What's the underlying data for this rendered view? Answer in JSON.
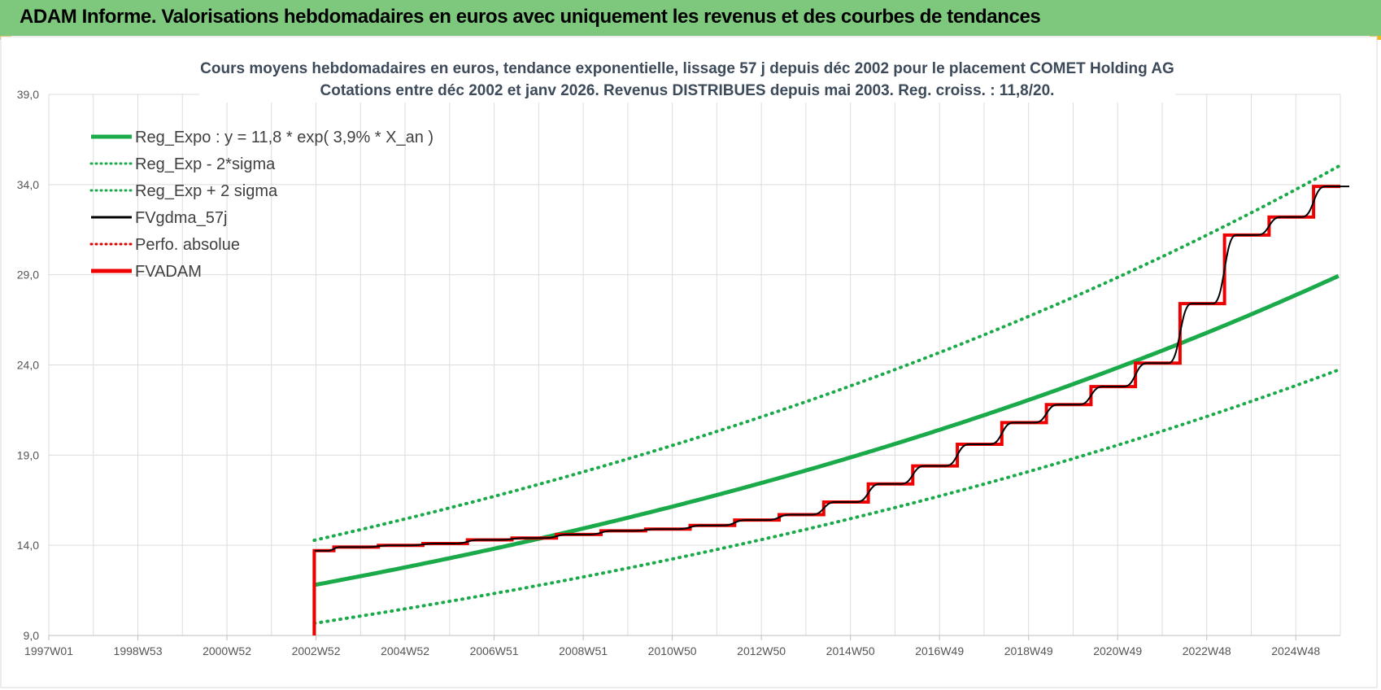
{
  "banner": {
    "title": "ADAM Informe. Valorisations hebdomadaires en euros avec uniquement les revenus et des courbes de tendances"
  },
  "chart_data": {
    "type": "line",
    "title_line1": "Cours moyens  hebdomadaires en euros, tendance exponentielle, lissage 57 j depuis déc 2002 pour le placement COMET Holding AG",
    "title_line2": "Cotations entre déc 2002 et janv 2026.  Revenus DISTRIBUES depuis mai 2003.  Reg. croiss. : 11,8/20.",
    "x_tick_labels": [
      "1997W01",
      "1998W53",
      "2000W52",
      "2002W52",
      "2004W52",
      "2006W51",
      "2008W51",
      "2010W50",
      "2012W50",
      "2014W50",
      "2016W49",
      "2018W49",
      "2020W49",
      "2022W48",
      "2024W48"
    ],
    "y_tick_labels": [
      "9,0",
      "14,0",
      "19,0",
      "24,0",
      "29,0",
      "34,0",
      "39,0"
    ],
    "ylim": [
      9,
      39
    ],
    "xlim": [
      1997.0,
      2026.0
    ],
    "grid": true,
    "legend_position": "top-left",
    "regression": {
      "a": 11.8,
      "rate": 0.039,
      "start": 2002.96,
      "end": 2026.0,
      "sigma_low_factor": 0.82,
      "sigma_high_factor": 1.21
    },
    "series": [
      {
        "name": "Reg_Expo : y = 11,8 * exp( 3,9% *  X_an )",
        "color": "#1aaa4a",
        "style": "solid",
        "width": 5
      },
      {
        "name": "Reg_Exp - 2*sigma",
        "color": "#1aaa4a",
        "style": "dotted",
        "width": 4
      },
      {
        "name": "Reg_Exp + 2 sigma",
        "color": "#1aaa4a",
        "style": "dotted",
        "width": 4
      },
      {
        "name": "FVgdma_57j",
        "color": "#000000",
        "style": "solid",
        "width": 2
      },
      {
        "name": "Perfo. absolue",
        "color": "#e00000",
        "style": "dotted",
        "width": 3
      },
      {
        "name": "FVADAM",
        "color": "#ee0000",
        "style": "solid",
        "width": 4,
        "steps": [
          [
            2002.96,
            9.0
          ],
          [
            2002.97,
            13.7
          ],
          [
            2003.4,
            13.9
          ],
          [
            2004.4,
            14.0
          ],
          [
            2005.4,
            14.1
          ],
          [
            2006.4,
            14.3
          ],
          [
            2007.4,
            14.4
          ],
          [
            2008.4,
            14.6
          ],
          [
            2009.4,
            14.8
          ],
          [
            2010.4,
            14.9
          ],
          [
            2011.4,
            15.1
          ],
          [
            2012.4,
            15.4
          ],
          [
            2013.4,
            15.7
          ],
          [
            2014.4,
            16.4
          ],
          [
            2015.4,
            17.4
          ],
          [
            2016.4,
            18.4
          ],
          [
            2017.4,
            19.6
          ],
          [
            2018.4,
            20.8
          ],
          [
            2019.4,
            21.8
          ],
          [
            2020.4,
            22.8
          ],
          [
            2021.4,
            24.1
          ],
          [
            2022.4,
            27.4
          ],
          [
            2023.4,
            31.2
          ],
          [
            2024.4,
            32.2
          ],
          [
            2025.4,
            33.9
          ],
          [
            2026.0,
            33.9
          ]
        ]
      }
    ]
  }
}
